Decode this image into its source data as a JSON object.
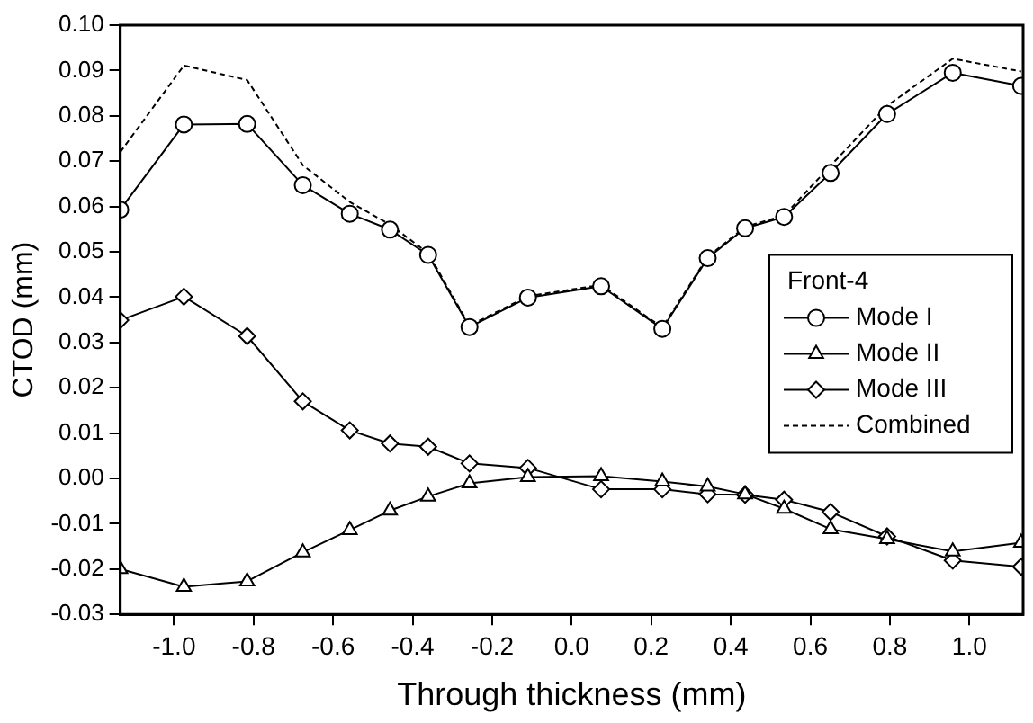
{
  "chart_data": {
    "type": "line",
    "xlabel": "Through thickness (mm)",
    "ylabel": "CTOD (mm)",
    "legend_title": "Front-4",
    "legend": "right",
    "grid": false,
    "x": [
      -1.135,
      -0.975,
      -0.816,
      -0.676,
      -0.558,
      -0.457,
      -0.361,
      -0.257,
      -0.11,
      0.074,
      0.228,
      0.342,
      0.436,
      0.534,
      0.651,
      0.793,
      0.958,
      1.13
    ],
    "xlim": [
      -1.135,
      1.135
    ],
    "xticks": [
      {
        "value": -1.0,
        "label": "-1.0"
      },
      {
        "value": -0.8,
        "label": "-0.8"
      },
      {
        "value": -0.6,
        "label": "-0.6"
      },
      {
        "value": -0.4,
        "label": "-0.4"
      },
      {
        "value": -0.2,
        "label": "-0.2"
      },
      {
        "value": 0,
        "label": "0.0"
      },
      {
        "value": 0.2,
        "label": "0.2"
      },
      {
        "value": 0.4,
        "label": "0.4"
      },
      {
        "value": 0.6,
        "label": "0.6"
      },
      {
        "value": 0.8,
        "label": "0.8"
      },
      {
        "value": 1.0,
        "label": "1.0"
      }
    ],
    "ylim": [
      -0.03,
      0.1
    ],
    "yticks": [
      {
        "value": -0.03,
        "label": "-0.03"
      },
      {
        "value": -0.02,
        "label": "-0.02"
      },
      {
        "value": -0.01,
        "label": "-0.01"
      },
      {
        "value": 0,
        "label": "0.00"
      },
      {
        "value": 0.01,
        "label": "0.01"
      },
      {
        "value": 0.02,
        "label": "0.02"
      },
      {
        "value": 0.03,
        "label": "0.03"
      },
      {
        "value": 0.04,
        "label": "0.04"
      },
      {
        "value": 0.05,
        "label": "0.05"
      },
      {
        "value": 0.06,
        "label": "0.06"
      },
      {
        "value": 0.07,
        "label": "0.07"
      },
      {
        "value": 0.08,
        "label": "0.08"
      },
      {
        "value": 0.09,
        "label": "0.09"
      },
      {
        "value": 0.1,
        "label": "0.10"
      }
    ],
    "series": [
      {
        "name": "Mode I",
        "color": "#000000",
        "marker": "circle",
        "line_style": "solid",
        "values": [
          0.0593,
          0.0781,
          0.0782,
          0.0647,
          0.0584,
          0.0549,
          0.0493,
          0.0334,
          0.0399,
          0.0424,
          0.033,
          0.0486,
          0.0552,
          0.0577,
          0.0674,
          0.0804,
          0.0895,
          0.0866
        ]
      },
      {
        "name": "Mode II",
        "color": "#000000",
        "marker": "triangle",
        "line_style": "solid",
        "values": [
          -0.02,
          -0.0239,
          -0.0227,
          -0.0163,
          -0.0114,
          -0.0071,
          -0.004,
          -0.0011,
          0.0003,
          0.0005,
          -0.0007,
          -0.0018,
          -0.0035,
          -0.0067,
          -0.0112,
          -0.0134,
          -0.0161,
          -0.0142
        ]
      },
      {
        "name": "Mode III",
        "color": "#000000",
        "marker": "diamond",
        "line_style": "solid",
        "values": [
          0.0349,
          0.0401,
          0.0314,
          0.017,
          0.0106,
          0.0077,
          0.007,
          0.0033,
          0.0023,
          -0.0024,
          -0.0024,
          -0.0035,
          -0.0036,
          -0.0047,
          -0.0074,
          -0.0128,
          -0.0181,
          -0.0195
        ]
      },
      {
        "name": "Combined",
        "color": "#000000",
        "marker": "none",
        "line_style": "dashed",
        "values": [
          0.072,
          0.0911,
          0.0879,
          0.0691,
          0.061,
          0.056,
          0.0497,
          0.0337,
          0.0402,
          0.0427,
          0.0333,
          0.0489,
          0.0555,
          0.058,
          0.069,
          0.0822,
          0.0926,
          0.0898
        ]
      }
    ]
  }
}
